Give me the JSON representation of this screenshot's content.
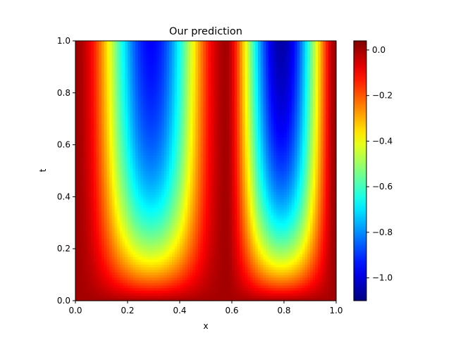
{
  "chart_data": {
    "type": "heatmap",
    "title": "Our prediction",
    "xlabel": "x",
    "ylabel": "t",
    "xlim": [
      0.0,
      1.0
    ],
    "ylim": [
      0.0,
      1.0
    ],
    "x_ticks": [
      0.0,
      0.2,
      0.4,
      0.6,
      0.8,
      1.0
    ],
    "y_ticks": [
      0.0,
      0.2,
      0.4,
      0.6,
      0.8,
      1.0
    ],
    "x_tick_labels": [
      "0.0",
      "0.2",
      "0.4",
      "0.6",
      "0.8",
      "1.0"
    ],
    "y_tick_labels": [
      "0.0",
      "0.2",
      "0.4",
      "0.6",
      "0.8",
      "1.0"
    ],
    "colormap": "jet",
    "colorbar": {
      "vmin": -1.1,
      "vmax": 0.04,
      "ticks": [
        0.0,
        -0.2,
        -0.4,
        -0.6,
        -0.8,
        -1.0
      ],
      "tick_labels": [
        "0.0",
        "−0.2",
        "−0.4",
        "−0.6",
        "−0.8",
        "−1.0"
      ]
    },
    "grid": false,
    "grid_resolution": [
      100,
      100
    ],
    "field_profile": {
      "x_min_troughs": [
        {
          "x_center": 0.22,
          "min_value_at_t1": -1.0
        },
        {
          "x_center": 0.87,
          "min_value_at_t1": -1.1
        }
      ],
      "ridge": {
        "x_center": 0.58,
        "value": 0.0
      }
    }
  }
}
